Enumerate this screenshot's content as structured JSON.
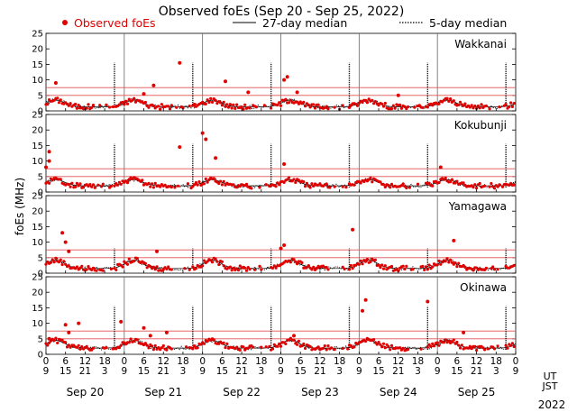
{
  "chart_data": {
    "type": "scatter",
    "title": "Observed foEs (Sep 20 - Sep 25, 2022)",
    "ylabel": "foEs (MHz)",
    "ylim": [
      0,
      25
    ],
    "yticks": [
      0,
      5,
      10,
      15,
      20,
      25
    ],
    "days": 6,
    "legend": {
      "observed": "Observed foEs",
      "median27": "27-day median",
      "median5": "5-day median",
      "observed_color": "#e00000"
    },
    "x_hour_ticks": [
      "0",
      "6",
      "12",
      "18"
    ],
    "x_jst_ticks": [
      "9",
      "15",
      "21",
      "3"
    ],
    "x_end_ut": "0",
    "x_end_jst": "9",
    "ut_label": "UT",
    "jst_label": "JST",
    "date_labels": [
      "Sep 20",
      "Sep 21",
      "Sep 22",
      "Sep 23",
      "Sep 24",
      "Sep 25"
    ],
    "year_label": "2022",
    "stations": [
      {
        "name": "Wakkanai",
        "ref_lines": [
          5,
          7.5
        ],
        "peak": 3.5,
        "base": 1.3,
        "spikes": [
          {
            "d": 0,
            "h": 3,
            "v": 9
          },
          {
            "d": 1,
            "h": 6,
            "v": 5.5
          },
          {
            "d": 1,
            "h": 9,
            "v": 8.2
          },
          {
            "d": 1,
            "h": 17,
            "v": 15.5
          },
          {
            "d": 2,
            "h": 7,
            "v": 9.5
          },
          {
            "d": 2,
            "h": 14,
            "v": 6
          },
          {
            "d": 3,
            "h": 1,
            "v": 10
          },
          {
            "d": 3,
            "h": 2,
            "v": 11
          },
          {
            "d": 3,
            "h": 5,
            "v": 6
          },
          {
            "d": 4,
            "h": 12,
            "v": 5
          }
        ]
      },
      {
        "name": "Kokubunji",
        "ref_lines": [
          5,
          7.5
        ],
        "peak": 4.0,
        "base": 2.0,
        "spikes": [
          {
            "d": 0,
            "h": 1,
            "v": 13
          },
          {
            "d": 0,
            "h": 0,
            "v": 8
          },
          {
            "d": 0,
            "h": 1,
            "v": 10
          },
          {
            "d": 1,
            "h": 17,
            "v": 14.5
          },
          {
            "d": 2,
            "h": 1,
            "v": 17
          },
          {
            "d": 2,
            "h": 0,
            "v": 19
          },
          {
            "d": 2,
            "h": 4,
            "v": 11
          },
          {
            "d": 3,
            "h": 1,
            "v": 9
          },
          {
            "d": 5,
            "h": 1,
            "v": 8
          }
        ]
      },
      {
        "name": "Yamagawa",
        "ref_lines": [
          5,
          7.5
        ],
        "peak": 4.2,
        "base": 1.5,
        "spikes": [
          {
            "d": 0,
            "h": 5,
            "v": 13
          },
          {
            "d": 0,
            "h": 6,
            "v": 10
          },
          {
            "d": 0,
            "h": 7,
            "v": 7
          },
          {
            "d": 1,
            "h": 10,
            "v": 7
          },
          {
            "d": 3,
            "h": 0,
            "v": 8
          },
          {
            "d": 3,
            "h": 1,
            "v": 9
          },
          {
            "d": 3,
            "h": 22,
            "v": 14
          },
          {
            "d": 5,
            "h": 5,
            "v": 10.5
          }
        ]
      },
      {
        "name": "Okinawa",
        "ref_lines": [
          5,
          7.5
        ],
        "peak": 4.5,
        "base": 2.0,
        "spikes": [
          {
            "d": 0,
            "h": 1,
            "v": 5
          },
          {
            "d": 0,
            "h": 6,
            "v": 9.5
          },
          {
            "d": 0,
            "h": 10,
            "v": 10
          },
          {
            "d": 0,
            "h": 7,
            "v": 7
          },
          {
            "d": 0,
            "h": 23,
            "v": 10.5
          },
          {
            "d": 1,
            "h": 6,
            "v": 8.5
          },
          {
            "d": 1,
            "h": 8,
            "v": 6
          },
          {
            "d": 1,
            "h": 13,
            "v": 7
          },
          {
            "d": 3,
            "h": 4,
            "v": 6
          },
          {
            "d": 4,
            "h": 2,
            "v": 17.5
          },
          {
            "d": 4,
            "h": 1,
            "v": 14
          },
          {
            "d": 4,
            "h": 21,
            "v": 17
          },
          {
            "d": 5,
            "h": 8,
            "v": 7
          }
        ]
      }
    ]
  }
}
